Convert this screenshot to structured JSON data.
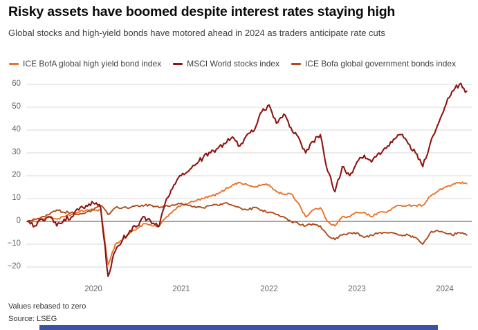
{
  "header": {
    "title": "Risky assets have boomed despite interest rates staying high",
    "subtitle": "Global stocks and high-yield bonds have motored ahead in 2024 as traders anticipate rate cuts"
  },
  "footer": {
    "note": "Values rebased to zero",
    "source": "Source: LSEG",
    "bar_color": "#3a53a8"
  },
  "chart_data": {
    "type": "line",
    "title": "Risky assets have boomed despite interest rates staying high",
    "xlabel": "",
    "ylabel": "",
    "x_start": 2019.25,
    "x_step_years": 0.08333,
    "x_ticks": [
      2020,
      2021,
      2022,
      2023,
      2024
    ],
    "y_ticks": [
      60,
      50,
      40,
      30,
      20,
      10,
      0,
      -10,
      -20
    ],
    "y_range": [
      -27,
      63
    ],
    "grid": true,
    "grid_color": "#d9d9d9",
    "zero_line_color": "#4a4a4a",
    "legend_position": "top",
    "legend": [
      {
        "label": "ICE BofA global high yield bond index",
        "series_id": "high_yield"
      },
      {
        "label": "MSCI World stocks index",
        "series_id": "msci_world"
      },
      {
        "label": "ICE Bofa global government bonds index",
        "series_id": "gov_bonds"
      }
    ],
    "series": [
      {
        "id": "high_yield",
        "name": "ICE BofA global high yield bond index",
        "color": "#e8722a",
        "width": 1.9,
        "volatility": 0.45,
        "values": [
          0,
          0,
          1,
          2,
          1,
          2,
          3,
          4,
          5,
          5,
          5,
          -19,
          -10,
          -8,
          -5,
          -3,
          -1,
          -2,
          -2,
          2,
          5,
          7,
          8,
          9,
          10,
          11,
          12,
          14,
          16,
          17,
          16,
          15,
          16,
          16,
          13,
          12,
          12,
          8,
          2,
          5,
          6,
          0,
          -2,
          2,
          2,
          4,
          4,
          2,
          4,
          4,
          6,
          7,
          7,
          7,
          7,
          11,
          13,
          15,
          16,
          17,
          16.5
        ]
      },
      {
        "id": "gov_bonds",
        "name": "ICE Bofa global government bonds index",
        "color": "#b04a18",
        "width": 1.9,
        "volatility": 0.5,
        "values": [
          0,
          1,
          2,
          3,
          5,
          4,
          4,
          3,
          4,
          5,
          7,
          3,
          6,
          6,
          6,
          7,
          7,
          7,
          6,
          7,
          7,
          8,
          7,
          6,
          6,
          7,
          7,
          8,
          7,
          6,
          5,
          6,
          5,
          4,
          3,
          2,
          0,
          -1,
          -2,
          -1,
          -2,
          -6,
          -8,
          -6,
          -5,
          -5,
          -7,
          -6,
          -5,
          -5,
          -5,
          -6,
          -6,
          -7,
          -10,
          -5,
          -4,
          -5,
          -6,
          -5,
          -6
        ]
      },
      {
        "id": "msci_world",
        "name": "MSCI World stocks index",
        "color": "#8e1410",
        "width": 2.1,
        "volatility": 1.1,
        "values": [
          0,
          -2,
          1,
          2,
          -2,
          1,
          2,
          5,
          7,
          8,
          6,
          -24,
          -13,
          -8,
          -4,
          -2,
          2,
          -1,
          -2,
          10,
          16,
          20,
          22,
          25,
          28,
          30,
          32,
          34,
          37,
          33,
          38,
          40,
          48,
          51,
          43,
          47,
          41,
          37,
          30,
          35,
          38,
          22,
          13,
          24,
          20,
          26,
          29,
          26,
          30,
          32,
          36,
          38,
          34,
          30,
          24,
          34,
          42,
          50,
          57,
          60,
          57
        ]
      }
    ]
  }
}
